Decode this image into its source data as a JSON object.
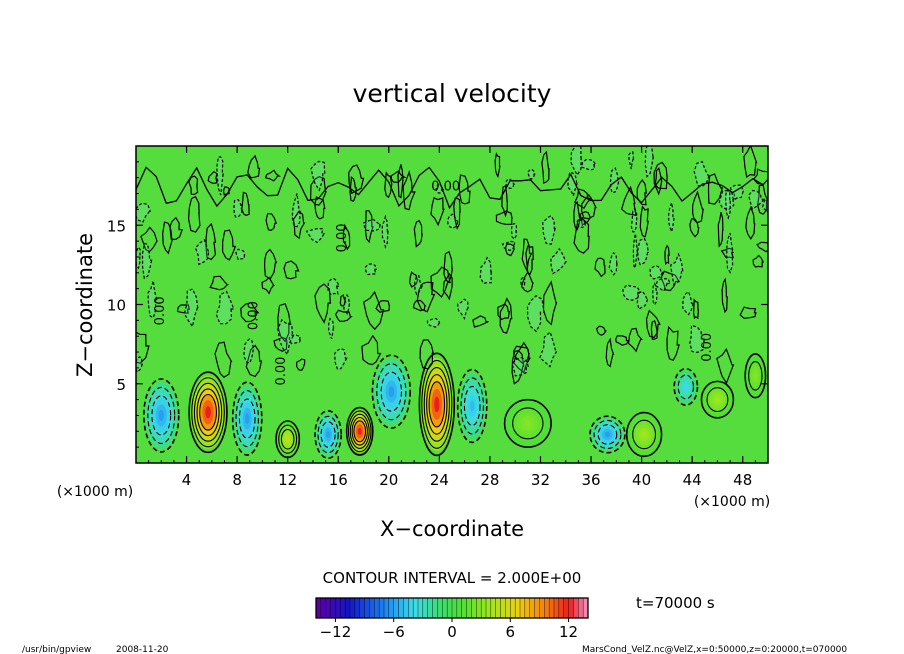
{
  "chart_data": {
    "type": "heatmap",
    "title": "vertical velocity",
    "xlabel": "X−coordinate",
    "ylabel": "Z−coordinate",
    "x_unit_left": "(×1000 m)",
    "x_unit_right": "(×1000 m)",
    "xlim": [
      0,
      50
    ],
    "ylim": [
      0,
      20
    ],
    "xticks": [
      4,
      8,
      12,
      16,
      20,
      24,
      28,
      32,
      36,
      40,
      44,
      48
    ],
    "yticks": [
      5,
      10,
      15
    ],
    "contour_interval": "CONTOUR INTERVAL = 2.000E+00",
    "contour_labels": [
      "0.00",
      "0.00",
      "0.00",
      "0.00",
      "0.00",
      "0.00"
    ],
    "time_label": "t=70000 s",
    "colorbar": {
      "min": -14,
      "max": 14,
      "ticks": [
        "−12",
        "−6",
        "0",
        "6",
        "12"
      ],
      "tick_values": [
        -12,
        -6,
        0,
        6,
        12
      ]
    },
    "cells": [
      {
        "x": 5.7,
        "z": 3.2,
        "w": 12,
        "sx": 1.3,
        "sz": 2.2
      },
      {
        "x": 12.0,
        "z": 1.5,
        "w": 5,
        "sx": 0.8,
        "sz": 1.0
      },
      {
        "x": 17.7,
        "z": 2.0,
        "w": 12,
        "sx": 0.9,
        "sz": 1.3
      },
      {
        "x": 23.8,
        "z": 3.7,
        "w": 12,
        "sx": 1.2,
        "sz": 2.8
      },
      {
        "x": 40.2,
        "z": 1.8,
        "w": 4,
        "sx": 1.2,
        "sz": 1.2
      },
      {
        "x": 46.0,
        "z": 4.0,
        "w": 4,
        "sx": 1.1,
        "sz": 1.0
      },
      {
        "x": 49.0,
        "z": 5.5,
        "w": 3,
        "sx": 0.7,
        "sz": 1.2
      },
      {
        "x": 31.0,
        "z": 2.5,
        "w": 3,
        "sx": 1.6,
        "sz": 1.3
      },
      {
        "x": 2.0,
        "z": 3.0,
        "w": -6,
        "sx": 1.2,
        "sz": 2.0
      },
      {
        "x": 8.8,
        "z": 2.8,
        "w": -6,
        "sx": 1.0,
        "sz": 2.0
      },
      {
        "x": 15.2,
        "z": 1.8,
        "w": -6,
        "sx": 0.9,
        "sz": 1.3
      },
      {
        "x": 20.2,
        "z": 4.5,
        "w": -6,
        "sx": 1.3,
        "sz": 2.0
      },
      {
        "x": 26.6,
        "z": 3.6,
        "w": -5,
        "sx": 1.0,
        "sz": 2.0
      },
      {
        "x": 37.3,
        "z": 1.8,
        "w": -6,
        "sx": 1.2,
        "sz": 1.0
      },
      {
        "x": 43.5,
        "z": 4.8,
        "w": -4,
        "sx": 0.8,
        "sz": 1.0
      }
    ]
  },
  "footer": {
    "program": "/usr/bin/gpview",
    "date": "2008-11-20",
    "source": "MarsCond_VelZ.nc@VelZ,x=0:50000,z=0:20000,t=070000"
  }
}
